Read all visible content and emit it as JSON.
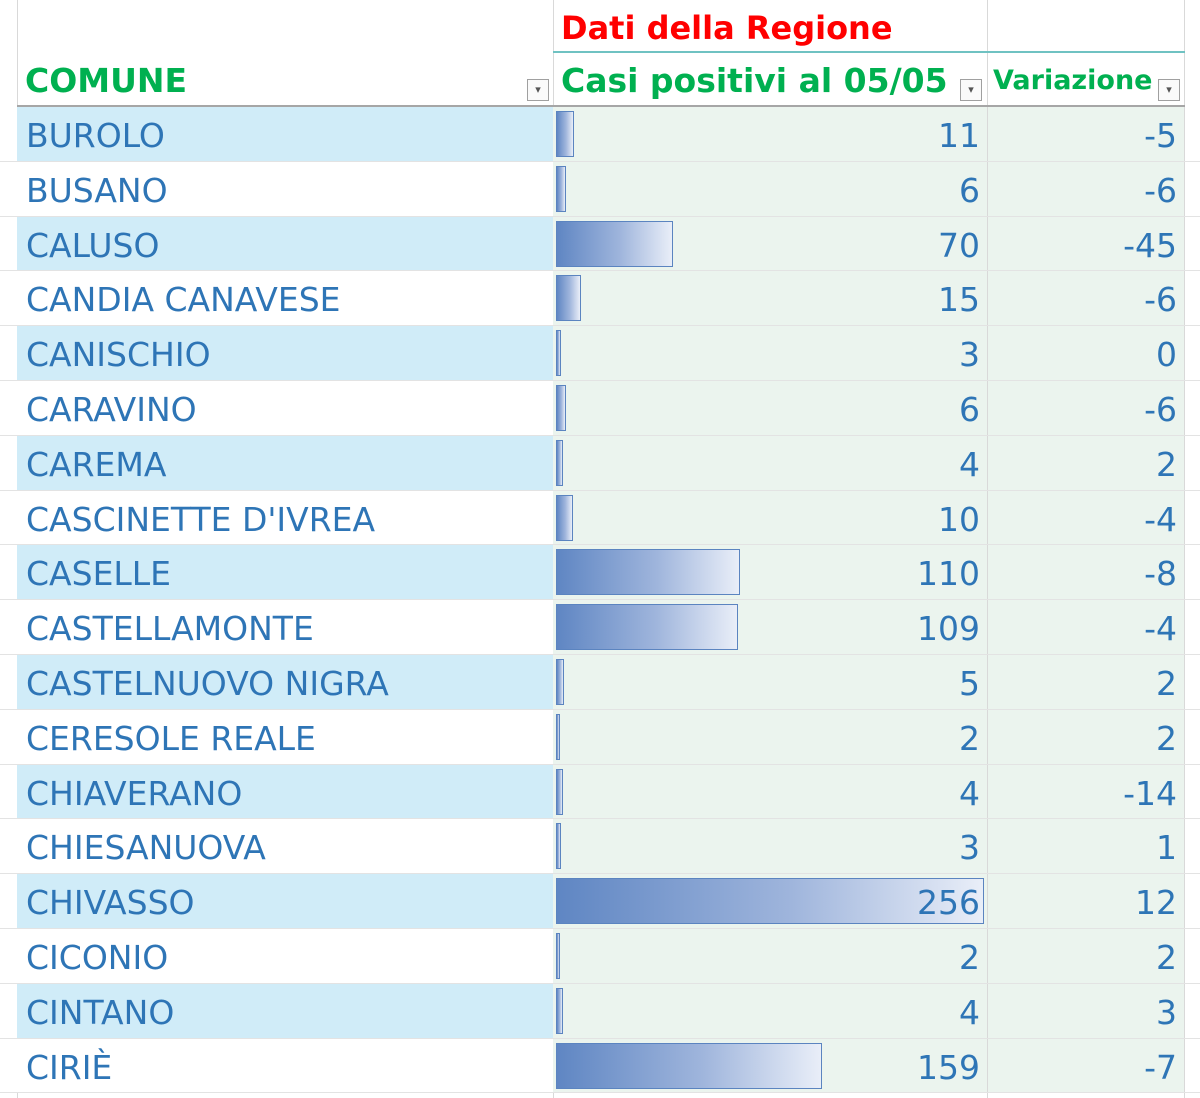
{
  "title": "Dati della Regione",
  "headers": {
    "comune": "COMUNE",
    "casi": "Casi positivi al 05/05",
    "variazione": "Variazione"
  },
  "max_value": 256,
  "rows": [
    {
      "comune": "BUROLO",
      "casi": 11,
      "variazione": "-5"
    },
    {
      "comune": "BUSANO",
      "casi": 6,
      "variazione": "-6"
    },
    {
      "comune": "CALUSO",
      "casi": 70,
      "variazione": "-45"
    },
    {
      "comune": "CANDIA CANAVESE",
      "casi": 15,
      "variazione": "-6"
    },
    {
      "comune": "CANISCHIO",
      "casi": 3,
      "variazione": "0"
    },
    {
      "comune": "CARAVINO",
      "casi": 6,
      "variazione": "-6"
    },
    {
      "comune": "CAREMA",
      "casi": 4,
      "variazione": "2"
    },
    {
      "comune": "CASCINETTE D'IVREA",
      "casi": 10,
      "variazione": "-4"
    },
    {
      "comune": "CASELLE",
      "casi": 110,
      "variazione": "-8"
    },
    {
      "comune": "CASTELLAMONTE",
      "casi": 109,
      "variazione": "-4"
    },
    {
      "comune": "CASTELNUOVO NIGRA",
      "casi": 5,
      "variazione": "2"
    },
    {
      "comune": "CERESOLE REALE",
      "casi": 2,
      "variazione": "2"
    },
    {
      "comune": "CHIAVERANO",
      "casi": 4,
      "variazione": "-14"
    },
    {
      "comune": "CHIESANUOVA",
      "casi": 3,
      "variazione": "1"
    },
    {
      "comune": "CHIVASSO",
      "casi": 256,
      "variazione": "12"
    },
    {
      "comune": "CICONIO",
      "casi": 2,
      "variazione": "2"
    },
    {
      "comune": "CINTANO",
      "casi": 4,
      "variazione": "3"
    },
    {
      "comune": "CIRIÈ",
      "casi": 159,
      "variazione": "-7"
    }
  ]
}
